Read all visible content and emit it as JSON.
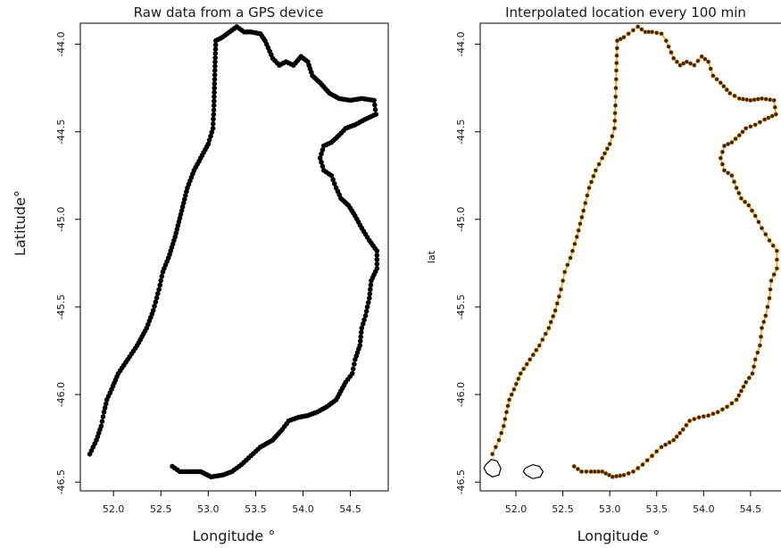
{
  "chart_data": [
    {
      "type": "scatter",
      "title": "Raw data from a GPS device",
      "xlabel": "Longitude °",
      "ylabel": "Latitude°",
      "xlim": [
        51.65,
        54.9
      ],
      "ylim": [
        -46.55,
        -43.88
      ],
      "xticks": [
        "52.0",
        "52.5",
        "53.0",
        "53.5",
        "54.0",
        "54.5"
      ],
      "yticks": [
        "-44.0",
        "-44.5",
        "-45.0",
        "-45.5",
        "-46.0",
        "-46.5"
      ],
      "grid": false,
      "marker_color": "#000000",
      "series": [
        {
          "points": [
            [
              51.75,
              -46.34
            ],
            [
              51.82,
              -46.26
            ],
            [
              51.87,
              -46.18
            ],
            [
              51.9,
              -46.1
            ],
            [
              51.93,
              -46.03
            ],
            [
              51.98,
              -45.97
            ],
            [
              52.05,
              -45.88
            ],
            [
              52.15,
              -45.8
            ],
            [
              52.25,
              -45.72
            ],
            [
              52.35,
              -45.62
            ],
            [
              52.42,
              -45.52
            ],
            [
              52.48,
              -45.4
            ],
            [
              52.52,
              -45.3
            ],
            [
              52.58,
              -45.22
            ],
            [
              52.65,
              -45.1
            ],
            [
              52.72,
              -44.95
            ],
            [
              52.78,
              -44.82
            ],
            [
              52.85,
              -44.72
            ],
            [
              52.92,
              -44.65
            ],
            [
              53.0,
              -44.57
            ],
            [
              53.05,
              -44.48
            ],
            [
              53.06,
              -44.35
            ],
            [
              53.07,
              -44.15
            ],
            [
              53.08,
              -43.98
            ],
            [
              53.15,
              -43.96
            ],
            [
              53.25,
              -43.92
            ],
            [
              53.3,
              -43.9
            ],
            [
              53.38,
              -43.93
            ],
            [
              53.45,
              -43.93
            ],
            [
              53.55,
              -43.94
            ],
            [
              53.6,
              -43.98
            ],
            [
              53.68,
              -44.08
            ],
            [
              53.75,
              -44.12
            ],
            [
              53.82,
              -44.1
            ],
            [
              53.9,
              -44.12
            ],
            [
              53.98,
              -44.07
            ],
            [
              54.05,
              -44.1
            ],
            [
              54.1,
              -44.18
            ],
            [
              54.18,
              -44.22
            ],
            [
              54.28,
              -44.28
            ],
            [
              54.38,
              -44.31
            ],
            [
              54.5,
              -44.32
            ],
            [
              54.62,
              -44.31
            ],
            [
              54.75,
              -44.32
            ],
            [
              54.77,
              -44.4
            ],
            [
              54.65,
              -44.43
            ],
            [
              54.55,
              -44.46
            ],
            [
              54.45,
              -44.48
            ],
            [
              54.38,
              -44.52
            ],
            [
              54.3,
              -44.56
            ],
            [
              54.22,
              -44.58
            ],
            [
              54.18,
              -44.65
            ],
            [
              54.22,
              -44.72
            ],
            [
              54.3,
              -44.75
            ],
            [
              54.35,
              -44.82
            ],
            [
              54.4,
              -44.88
            ],
            [
              54.48,
              -44.92
            ],
            [
              54.55,
              -44.98
            ],
            [
              54.62,
              -45.05
            ],
            [
              54.7,
              -45.12
            ],
            [
              54.78,
              -45.18
            ],
            [
              54.78,
              -45.28
            ],
            [
              54.72,
              -45.35
            ],
            [
              54.7,
              -45.45
            ],
            [
              54.66,
              -45.55
            ],
            [
              54.62,
              -45.62
            ],
            [
              54.6,
              -45.72
            ],
            [
              54.55,
              -45.8
            ],
            [
              54.52,
              -45.88
            ],
            [
              54.45,
              -45.93
            ],
            [
              54.4,
              -45.98
            ],
            [
              54.35,
              -46.03
            ],
            [
              54.25,
              -46.07
            ],
            [
              54.15,
              -46.1
            ],
            [
              54.05,
              -46.12
            ],
            [
              53.95,
              -46.13
            ],
            [
              53.85,
              -46.15
            ],
            [
              53.78,
              -46.2
            ],
            [
              53.68,
              -46.26
            ],
            [
              53.55,
              -46.3
            ],
            [
              53.45,
              -46.35
            ],
            [
              53.35,
              -46.4
            ],
            [
              53.25,
              -46.44
            ],
            [
              53.15,
              -46.46
            ],
            [
              53.03,
              -46.47
            ],
            [
              52.92,
              -46.44
            ],
            [
              52.8,
              -46.44
            ],
            [
              52.7,
              -46.44
            ],
            [
              52.62,
              -46.41
            ]
          ]
        }
      ]
    },
    {
      "type": "scatter",
      "title": "Interpolated location every 100 min",
      "xlabel": "Longitude °",
      "ylabel": "lat",
      "xlim": [
        51.62,
        54.9
      ],
      "ylim": [
        -46.55,
        -43.88
      ],
      "xticks": [
        "52.0",
        "52.5",
        "53.0",
        "53.5",
        "54.0",
        "54.5"
      ],
      "yticks": [
        "-44.0",
        "-44.5",
        "-45.0",
        "-45.5",
        "-46.0",
        "-46.5"
      ],
      "grid": false,
      "marker_color": "#3a2410",
      "line_color": "#f0a020",
      "series": [
        {
          "points": [
            [
              51.75,
              -46.34
            ],
            [
              51.82,
              -46.26
            ],
            [
              51.87,
              -46.18
            ],
            [
              51.9,
              -46.1
            ],
            [
              51.93,
              -46.03
            ],
            [
              51.98,
              -45.97
            ],
            [
              52.05,
              -45.88
            ],
            [
              52.15,
              -45.8
            ],
            [
              52.25,
              -45.72
            ],
            [
              52.35,
              -45.62
            ],
            [
              52.42,
              -45.52
            ],
            [
              52.48,
              -45.4
            ],
            [
              52.52,
              -45.3
            ],
            [
              52.58,
              -45.22
            ],
            [
              52.65,
              -45.1
            ],
            [
              52.72,
              -44.95
            ],
            [
              52.78,
              -44.82
            ],
            [
              52.85,
              -44.72
            ],
            [
              52.92,
              -44.65
            ],
            [
              53.0,
              -44.57
            ],
            [
              53.05,
              -44.48
            ],
            [
              53.06,
              -44.35
            ],
            [
              53.07,
              -44.15
            ],
            [
              53.08,
              -43.98
            ],
            [
              53.15,
              -43.96
            ],
            [
              53.25,
              -43.92
            ],
            [
              53.3,
              -43.9
            ],
            [
              53.38,
              -43.93
            ],
            [
              53.45,
              -43.93
            ],
            [
              53.55,
              -43.94
            ],
            [
              53.6,
              -43.98
            ],
            [
              53.68,
              -44.08
            ],
            [
              53.75,
              -44.12
            ],
            [
              53.82,
              -44.1
            ],
            [
              53.9,
              -44.12
            ],
            [
              53.98,
              -44.07
            ],
            [
              54.05,
              -44.1
            ],
            [
              54.1,
              -44.18
            ],
            [
              54.18,
              -44.22
            ],
            [
              54.28,
              -44.28
            ],
            [
              54.38,
              -44.31
            ],
            [
              54.5,
              -44.32
            ],
            [
              54.62,
              -44.31
            ],
            [
              54.75,
              -44.32
            ],
            [
              54.77,
              -44.4
            ],
            [
              54.65,
              -44.43
            ],
            [
              54.55,
              -44.46
            ],
            [
              54.45,
              -44.48
            ],
            [
              54.38,
              -44.52
            ],
            [
              54.3,
              -44.56
            ],
            [
              54.22,
              -44.58
            ],
            [
              54.18,
              -44.65
            ],
            [
              54.22,
              -44.72
            ],
            [
              54.3,
              -44.75
            ],
            [
              54.35,
              -44.82
            ],
            [
              54.4,
              -44.88
            ],
            [
              54.48,
              -44.92
            ],
            [
              54.55,
              -44.98
            ],
            [
              54.62,
              -45.05
            ],
            [
              54.7,
              -45.12
            ],
            [
              54.78,
              -45.18
            ],
            [
              54.78,
              -45.28
            ],
            [
              54.72,
              -45.35
            ],
            [
              54.7,
              -45.45
            ],
            [
              54.66,
              -45.55
            ],
            [
              54.62,
              -45.62
            ],
            [
              54.6,
              -45.72
            ],
            [
              54.55,
              -45.8
            ],
            [
              54.52,
              -45.88
            ],
            [
              54.45,
              -45.93
            ],
            [
              54.4,
              -45.98
            ],
            [
              54.35,
              -46.03
            ],
            [
              54.25,
              -46.07
            ],
            [
              54.15,
              -46.1
            ],
            [
              54.05,
              -46.12
            ],
            [
              53.95,
              -46.13
            ],
            [
              53.85,
              -46.15
            ],
            [
              53.78,
              -46.2
            ],
            [
              53.68,
              -46.26
            ],
            [
              53.55,
              -46.3
            ],
            [
              53.45,
              -46.35
            ],
            [
              53.35,
              -46.4
            ],
            [
              53.25,
              -46.44
            ],
            [
              53.15,
              -46.46
            ],
            [
              53.03,
              -46.47
            ],
            [
              52.92,
              -46.44
            ],
            [
              52.8,
              -46.44
            ],
            [
              52.7,
              -46.44
            ],
            [
              52.62,
              -46.41
            ]
          ]
        }
      ],
      "islands": [
        [
          [
            51.68,
            -46.4
          ],
          [
            51.74,
            -46.37
          ],
          [
            51.8,
            -46.38
          ],
          [
            51.84,
            -46.42
          ],
          [
            51.82,
            -46.46
          ],
          [
            51.75,
            -46.47
          ],
          [
            51.69,
            -46.45
          ],
          [
            51.66,
            -46.42
          ]
        ],
        [
          [
            52.1,
            -46.42
          ],
          [
            52.18,
            -46.4
          ],
          [
            52.25,
            -46.41
          ],
          [
            52.29,
            -46.44
          ],
          [
            52.26,
            -46.47
          ],
          [
            52.18,
            -46.48
          ],
          [
            52.11,
            -46.46
          ],
          [
            52.08,
            -46.44
          ]
        ]
      ]
    }
  ]
}
